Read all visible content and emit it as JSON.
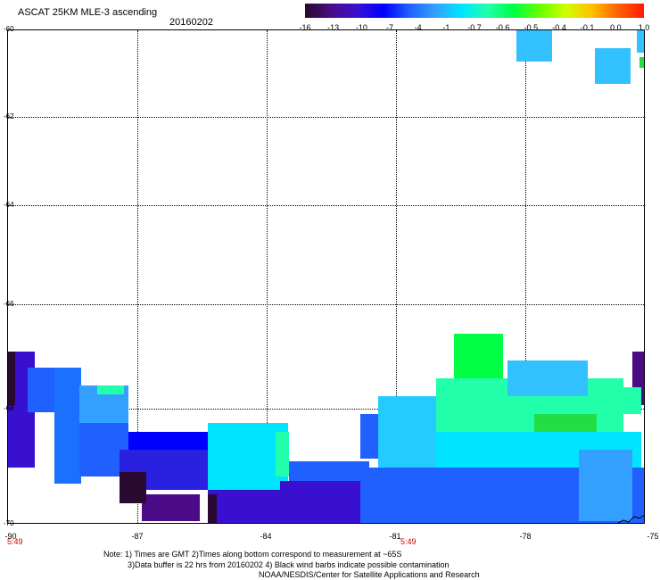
{
  "header": {
    "title": "ASCAT 25KM MLE-3 ascending",
    "date": "20160202"
  },
  "colorbar": {
    "colors": [
      "#2a0a30",
      "#4b0b86",
      "#3a10d0",
      "#0000ff",
      "#2060ff",
      "#33a0ff",
      "#00e5ff",
      "#22ffaa",
      "#00ff44",
      "#66ff00",
      "#d0ff00",
      "#ffc000",
      "#ff6000",
      "#ff1a00"
    ],
    "ticks": [
      "-16",
      "-13",
      "-10",
      "-7",
      "-4",
      "-1",
      "-0.7",
      "-0.6",
      "-0.5",
      "-0.4",
      "-0.1",
      "0.0",
      "1.0"
    ]
  },
  "axes": {
    "lat_labels": [
      "-60",
      "-62",
      "-64",
      "-66",
      "-68",
      "-70"
    ],
    "lon_labels": [
      "-90",
      "-87",
      "-84",
      "-81",
      "-78",
      "-75"
    ]
  },
  "times": [
    "5:49",
    "5:49"
  ],
  "notes": {
    "line1": "Note: 1) Times are GMT 2)Times along bottom correspond to measurement at ~65S",
    "line2": "3)Data buffer is 22 hrs from 20160202 4) Black wind barbs indicate possible contamination",
    "line3": "NOAA/NESDIS/Center for Satellite Applications and Research"
  }
}
